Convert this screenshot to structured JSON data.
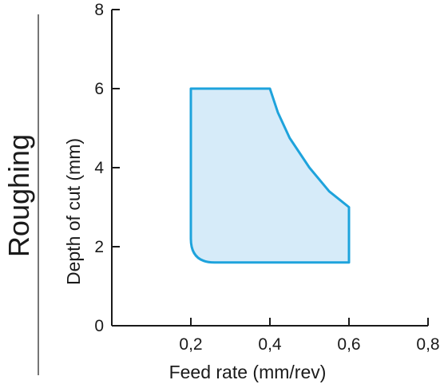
{
  "side_label": "Roughing",
  "colors": {
    "region_fill": "#d6ebf9",
    "region_stroke": "#1ea3dc",
    "axis": "#1a1a1a",
    "text": "#1a1a1a"
  },
  "chart_data": {
    "type": "area",
    "title": "",
    "xlabel": "Feed rate (mm/rev)",
    "ylabel": "Depth of cut (mm)",
    "xlim": [
      0,
      0.8
    ],
    "ylim": [
      0,
      8
    ],
    "x_ticks": [
      "0,2",
      "0,4",
      "0,6",
      "0,8"
    ],
    "y_ticks": [
      "0",
      "2",
      "4",
      "6",
      "8"
    ],
    "grid": false,
    "series": [
      {
        "points": [
          {
            "x": 0.2,
            "y": 6.0
          },
          {
            "x": 0.4,
            "y": 6.0
          },
          {
            "x": 0.42,
            "y": 5.4
          },
          {
            "x": 0.45,
            "y": 4.75
          },
          {
            "x": 0.5,
            "y": 4.0
          },
          {
            "x": 0.55,
            "y": 3.4
          },
          {
            "x": 0.6,
            "y": 3.0
          },
          {
            "x": 0.6,
            "y": 1.6
          },
          {
            "x": 0.26,
            "y": 1.6
          },
          {
            "x": 0.2,
            "y": 2.2
          }
        ]
      }
    ]
  }
}
